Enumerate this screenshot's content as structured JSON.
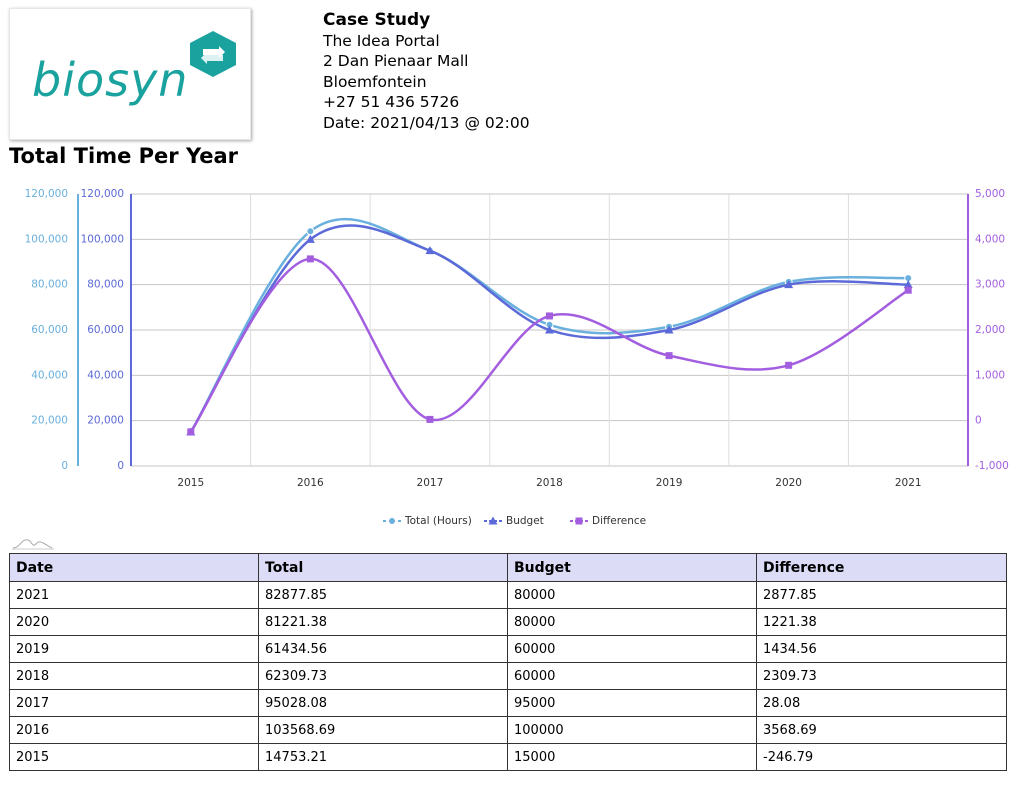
{
  "logo": {
    "text": "biosyn",
    "brand_color": "#1aa39e"
  },
  "header": {
    "title": "Case Study",
    "line1": "The Idea Portal",
    "line2": "2 Dan Pienaar Mall",
    "line3": "Bloemfontein",
    "phone": "+27 51 436 5726",
    "date": "Date: 2021/04/13 @ 02:00"
  },
  "page_title": "Total Time Per Year",
  "chart_data": {
    "type": "line",
    "categories": [
      "2015",
      "2016",
      "2017",
      "2018",
      "2019",
      "2020",
      "2021"
    ],
    "series": [
      {
        "name": "Total (Hours)",
        "axis": "left",
        "marker": "circle",
        "color": "#6ab0de",
        "values": [
          14753.21,
          103568.69,
          95028.08,
          62309.73,
          61434.56,
          81221.38,
          82877.85
        ]
      },
      {
        "name": "Budget",
        "axis": "left",
        "marker": "triangle",
        "color": "#5b6ad8",
        "values": [
          15000,
          100000,
          95000,
          60000,
          60000,
          80000,
          80000
        ]
      },
      {
        "name": "Difference",
        "axis": "right",
        "marker": "square",
        "color": "#a35ee0",
        "values": [
          -246.79,
          3568.69,
          28.08,
          2309.73,
          1434.56,
          1221.38,
          2877.85
        ]
      }
    ],
    "y_left_outer": {
      "ticks": [
        "0",
        "20,000",
        "40,000",
        "60,000",
        "80,000",
        "100,000",
        "120,000"
      ],
      "range": [
        0,
        120000
      ],
      "color": "#6ab0de"
    },
    "y_left_inner": {
      "ticks": [
        "0",
        "20,000",
        "40,000",
        "60,000",
        "80,000",
        "100,000",
        "120,000"
      ],
      "range": [
        0,
        120000
      ],
      "color": "#5b6ad8"
    },
    "y_right": {
      "ticks": [
        "-1,000",
        "0",
        "1,000",
        "2,000",
        "3,000",
        "4,000",
        "5,000"
      ],
      "range": [
        -1000,
        5000
      ],
      "color": "#a35ee0"
    },
    "grid": true,
    "legend_position": "bottom"
  },
  "table": {
    "headers": [
      "Date",
      "Total",
      "Budget",
      "Difference"
    ],
    "rows": [
      [
        "2021",
        "82877.85",
        "80000",
        "2877.85"
      ],
      [
        "2020",
        "81221.38",
        "80000",
        "1221.38"
      ],
      [
        "2019",
        "61434.56",
        "60000",
        "1434.56"
      ],
      [
        "2018",
        "62309.73",
        "60000",
        "2309.73"
      ],
      [
        "2017",
        "95028.08",
        "95000",
        "28.08"
      ],
      [
        "2016",
        "103568.69",
        "100000",
        "3568.69"
      ],
      [
        "2015",
        "14753.21",
        "15000",
        "-246.79"
      ]
    ]
  }
}
